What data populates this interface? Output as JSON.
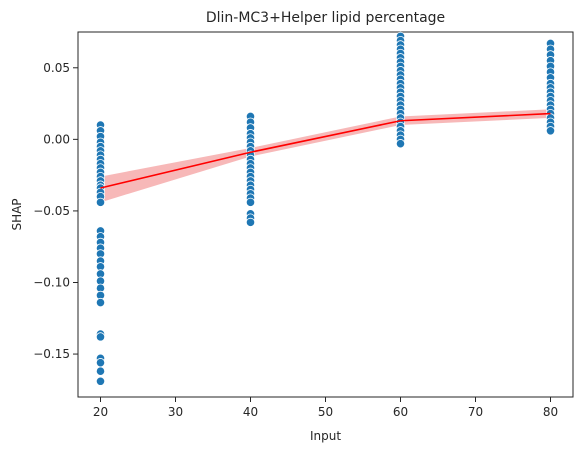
{
  "chart_data": {
    "type": "scatter",
    "title": "Dlin-MC3+Helper lipid percentage",
    "xlabel": "Input",
    "ylabel": "SHAP",
    "xlim": [
      17,
      83
    ],
    "ylim": [
      -0.18,
      0.075
    ],
    "xticks": [
      20,
      30,
      40,
      50,
      60,
      70,
      80
    ],
    "yticks": [
      -0.15,
      -0.1,
      -0.05,
      0.0,
      0.05
    ],
    "ytick_labels": [
      "−0.15",
      "−0.10",
      "−0.05",
      "0.00",
      "0.05"
    ],
    "grid": false,
    "legend": "none",
    "colors": {
      "points": "#1f77b4",
      "trend": "#ff0000",
      "band": "#f4a0a0"
    },
    "series": [
      {
        "kind": "points",
        "points": [
          [
            20,
            0.01
          ],
          [
            20,
            0.006
          ],
          [
            20,
            0.002
          ],
          [
            20,
            -0.002
          ],
          [
            20,
            -0.005
          ],
          [
            20,
            -0.008
          ],
          [
            20,
            -0.011
          ],
          [
            20,
            -0.014
          ],
          [
            20,
            -0.017
          ],
          [
            20,
            -0.02
          ],
          [
            20,
            -0.023
          ],
          [
            20,
            -0.026
          ],
          [
            20,
            -0.029
          ],
          [
            20,
            -0.032
          ],
          [
            20,
            -0.034
          ],
          [
            20,
            -0.037
          ],
          [
            20,
            -0.04
          ],
          [
            20,
            -0.044
          ],
          [
            20,
            -0.064
          ],
          [
            20,
            -0.068
          ],
          [
            20,
            -0.072
          ],
          [
            20,
            -0.076
          ],
          [
            20,
            -0.08
          ],
          [
            20,
            -0.085
          ],
          [
            20,
            -0.089
          ],
          [
            20,
            -0.094
          ],
          [
            20,
            -0.099
          ],
          [
            20,
            -0.104
          ],
          [
            20,
            -0.109
          ],
          [
            20,
            -0.114
          ],
          [
            20,
            -0.136
          ],
          [
            20,
            -0.138
          ],
          [
            20,
            -0.153
          ],
          [
            20,
            -0.156
          ],
          [
            20,
            -0.162
          ],
          [
            20,
            -0.169
          ],
          [
            40,
            0.016
          ],
          [
            40,
            0.012
          ],
          [
            40,
            0.008
          ],
          [
            40,
            0.004
          ],
          [
            40,
            0.001
          ],
          [
            40,
            -0.002
          ],
          [
            40,
            -0.005
          ],
          [
            40,
            -0.008
          ],
          [
            40,
            -0.011
          ],
          [
            40,
            -0.014
          ],
          [
            40,
            -0.017
          ],
          [
            40,
            -0.02
          ],
          [
            40,
            -0.023
          ],
          [
            40,
            -0.026
          ],
          [
            40,
            -0.029
          ],
          [
            40,
            -0.032
          ],
          [
            40,
            -0.035
          ],
          [
            40,
            -0.038
          ],
          [
            40,
            -0.041
          ],
          [
            40,
            -0.044
          ],
          [
            40,
            -0.052
          ],
          [
            40,
            -0.055
          ],
          [
            40,
            -0.058
          ],
          [
            60,
            0.072
          ],
          [
            60,
            0.069
          ],
          [
            60,
            0.066
          ],
          [
            60,
            0.063
          ],
          [
            60,
            0.06
          ],
          [
            60,
            0.057
          ],
          [
            60,
            0.054
          ],
          [
            60,
            0.051
          ],
          [
            60,
            0.048
          ],
          [
            60,
            0.045
          ],
          [
            60,
            0.042
          ],
          [
            60,
            0.039
          ],
          [
            60,
            0.036
          ],
          [
            60,
            0.033
          ],
          [
            60,
            0.03
          ],
          [
            60,
            0.027
          ],
          [
            60,
            0.024
          ],
          [
            60,
            0.021
          ],
          [
            60,
            0.018
          ],
          [
            60,
            0.015
          ],
          [
            60,
            0.012
          ],
          [
            60,
            0.009
          ],
          [
            60,
            0.006
          ],
          [
            60,
            0.003
          ],
          [
            60,
            0.0
          ],
          [
            60,
            -0.003
          ],
          [
            80,
            0.067
          ],
          [
            80,
            0.063
          ],
          [
            80,
            0.059
          ],
          [
            80,
            0.055
          ],
          [
            80,
            0.051
          ],
          [
            80,
            0.047
          ],
          [
            80,
            0.043
          ],
          [
            80,
            0.039
          ],
          [
            80,
            0.036
          ],
          [
            80,
            0.033
          ],
          [
            80,
            0.03
          ],
          [
            80,
            0.027
          ],
          [
            80,
            0.024
          ],
          [
            80,
            0.021
          ],
          [
            80,
            0.018
          ],
          [
            80,
            0.015
          ],
          [
            80,
            0.012
          ],
          [
            80,
            0.009
          ],
          [
            80,
            0.006
          ]
        ]
      },
      {
        "kind": "trend",
        "x": [
          20,
          40,
          60,
          80
        ],
        "y": [
          -0.034,
          -0.009,
          0.013,
          0.018
        ],
        "band_low": [
          -0.044,
          -0.012,
          0.01,
          0.015
        ],
        "band_high": [
          -0.026,
          -0.006,
          0.016,
          0.021
        ]
      }
    ]
  }
}
